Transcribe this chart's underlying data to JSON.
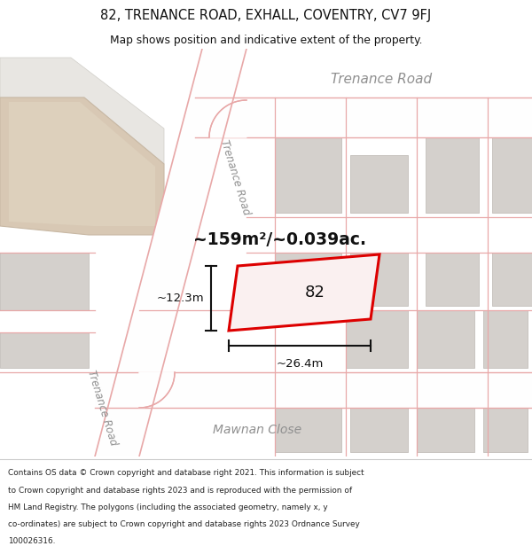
{
  "title_line1": "82, TRENANCE ROAD, EXHALL, COVENTRY, CV7 9FJ",
  "title_line2": "Map shows position and indicative extent of the property.",
  "footer_lines": [
    "Contains OS data © Crown copyright and database right 2021. This information is subject",
    "to Crown copyright and database rights 2023 and is reproduced with the permission of",
    "HM Land Registry. The polygons (including the associated geometry, namely x, y",
    "co-ordinates) are subject to Crown copyright and database rights 2023 Ordnance Survey",
    "100026316."
  ],
  "map_bg": "#f7f5f2",
  "header_bg": "#ffffff",
  "footer_bg": "#ffffff",
  "area_label": "~159m²/~0.039ac.",
  "width_label": "~26.4m",
  "height_label": "~12.3m",
  "property_number": "82",
  "road_color": "#e8a8a8",
  "road_fill": "#fefefe",
  "building_color": "#d4d0cc",
  "building_edge": "#c8c4c0",
  "property_fill": "#faf0f0",
  "property_outline": "#dd0000",
  "dim_color": "#111111",
  "street_label_color": "#909090",
  "tan_color": "#d8c8b4",
  "tan_edge": "#c8b8a4",
  "grey_block_color": "#c8c4bf",
  "grey_block_edge": "#b8b4af"
}
